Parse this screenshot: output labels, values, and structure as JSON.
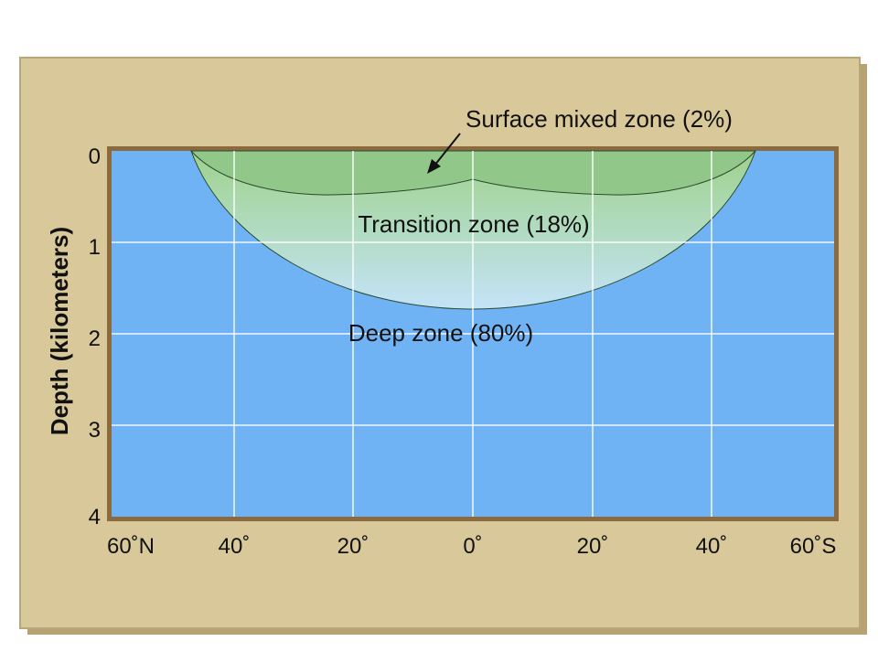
{
  "diagram": {
    "y_axis_label": "Depth (kilometers)",
    "y_ticks": [
      "0",
      "1",
      "2",
      "3",
      "4"
    ],
    "x_ticks": [
      "60˚N",
      "40˚",
      "20˚",
      "0˚",
      "20˚",
      "40˚",
      "60˚S"
    ],
    "zones": {
      "surface": "Surface mixed zone (2%)",
      "transition": "Transition zone (18%)",
      "deep": "Deep zone (80%)"
    },
    "colors": {
      "frame": "#d9c99a",
      "frame_shadow": "#b6a273",
      "deep_water": "#6fb3f5",
      "surface_zone": "#92c78a",
      "transition_zone_bottom": "#bfe0f8",
      "grid": "#ffffff"
    }
  }
}
